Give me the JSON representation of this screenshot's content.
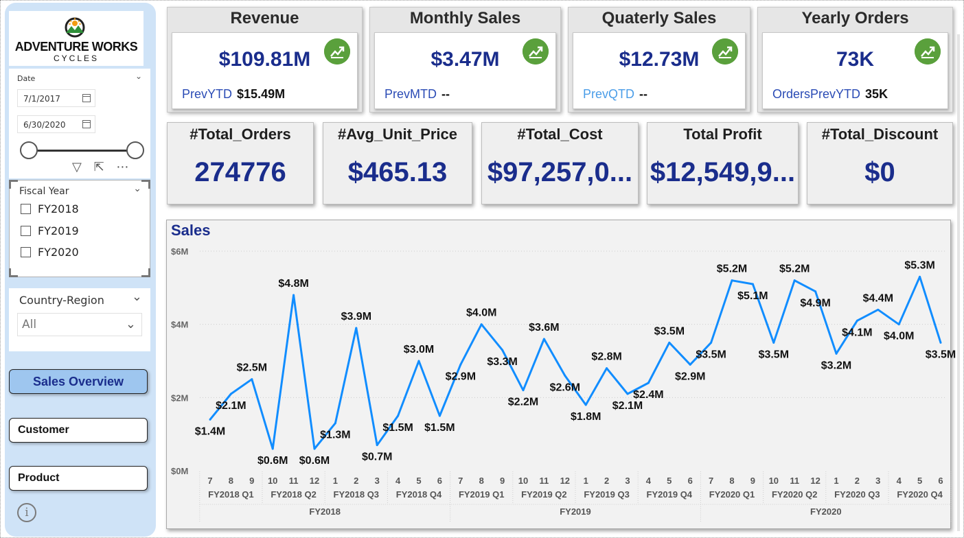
{
  "brand": {
    "title": "ADVENTURE WORKS",
    "subtitle": "CYCLES"
  },
  "date_slicer": {
    "label": "Date",
    "start": "7/1/2017",
    "end": "6/30/2020"
  },
  "fiscal_year": {
    "title": "Fiscal Year",
    "options": [
      "FY2018",
      "FY2019",
      "FY2020"
    ]
  },
  "country_region": {
    "title": "Country-Region",
    "selected": "All"
  },
  "nav": {
    "sales_overview": "Sales Overview",
    "customer": "Customer",
    "product": "Product"
  },
  "kpis": [
    {
      "title": "Revenue",
      "value": "$109.81M",
      "prev_label": "PrevYTD",
      "prev_value": "$15.49M"
    },
    {
      "title": "Monthly Sales",
      "value": "$3.47M",
      "prev_label": "PrevMTD",
      "prev_value": "--"
    },
    {
      "title": "Quaterly Sales",
      "value": "$12.73M",
      "prev_label": "PrevQTD",
      "prev_value": "--"
    },
    {
      "title": "Yearly Orders",
      "value": "73K",
      "prev_label": "OrdersPrevYTD",
      "prev_value": "35K"
    }
  ],
  "metrics": [
    {
      "title": "#Total_Orders",
      "value": "274776"
    },
    {
      "title": "#Avg_Unit_Price",
      "value": "$465.13"
    },
    {
      "title": "#Total_Cost",
      "value": "$97,257,0..."
    },
    {
      "title": "Total Profit",
      "value": "$12,549,9..."
    },
    {
      "title": "#Total_Discount",
      "value": "$0"
    }
  ],
  "colors": {
    "accent": "#1a2d8c",
    "line": "#118dff",
    "trend": "#5aa03c"
  },
  "chart_data": {
    "type": "line",
    "title": "Sales",
    "ylim": [
      0,
      6
    ],
    "yticks": [
      "$0M",
      "$2M",
      "$4M",
      "$6M"
    ],
    "months": [
      "7",
      "8",
      "9",
      "10",
      "11",
      "12",
      "1",
      "2",
      "3",
      "4",
      "5",
      "6",
      "7",
      "8",
      "9",
      "10",
      "11",
      "12",
      "1",
      "2",
      "3",
      "4",
      "5",
      "6",
      "7",
      "8",
      "9",
      "10",
      "11",
      "12",
      "1",
      "2",
      "3",
      "4",
      "5",
      "6"
    ],
    "quarters": [
      "FY2018 Q1",
      "FY2018 Q2",
      "FY2018 Q3",
      "FY2018 Q4",
      "FY2019 Q1",
      "FY2019 Q2",
      "FY2019 Q3",
      "FY2019 Q4",
      "FY2020 Q1",
      "FY2020 Q2",
      "FY2020 Q3",
      "FY2020 Q4"
    ],
    "years": [
      "FY2018",
      "FY2019",
      "FY2020"
    ],
    "values": [
      1.4,
      2.1,
      2.5,
      0.6,
      4.8,
      0.6,
      1.3,
      3.9,
      0.7,
      1.5,
      3.0,
      1.5,
      2.9,
      4.0,
      3.3,
      2.2,
      3.6,
      2.6,
      1.8,
      2.8,
      2.1,
      2.4,
      3.5,
      2.9,
      3.5,
      5.2,
      5.1,
      3.5,
      5.2,
      4.9,
      3.2,
      4.1,
      4.4,
      4.0,
      5.3,
      3.5
    ],
    "labels": [
      "$1.4M",
      "$2.1M",
      "$2.5M",
      "$0.6M",
      "$4.8M",
      "$0.6M",
      "$1.3M",
      "$3.9M",
      "$0.7M",
      "$1.5M",
      "$3.0M",
      "$1.5M",
      "$2.9M",
      "$4.0M",
      "$3.3M",
      "$2.2M",
      "$3.6M",
      "$2.6M",
      "$1.8M",
      "$2.8M",
      "$2.1M",
      "$2.4M",
      "$3.5M",
      "$2.9M",
      "$3.5M",
      "$5.2M",
      "$5.1M",
      "$3.5M",
      "$5.2M",
      "$4.9M",
      "$3.2M",
      "$4.1M",
      "$4.4M",
      "$4.0M",
      "$5.3M",
      "$3.5M"
    ]
  }
}
